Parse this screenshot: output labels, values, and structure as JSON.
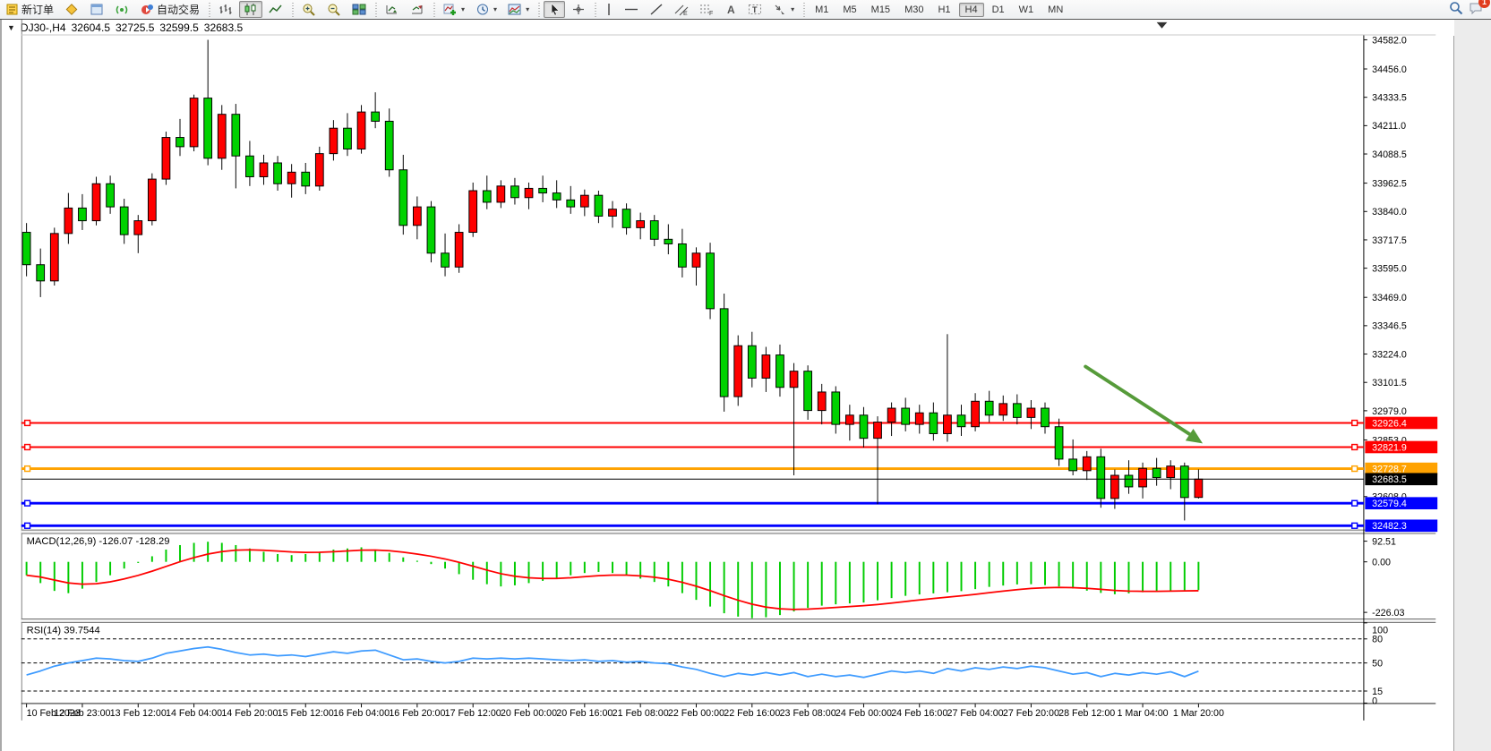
{
  "toolbar": {
    "groups": [
      {
        "items": [
          {
            "name": "new-order",
            "icon": "new-order",
            "label": "新订单"
          },
          {
            "name": "quotes",
            "icon": "diamond"
          },
          {
            "name": "market-watch",
            "icon": "window-blue"
          },
          {
            "name": "signals",
            "icon": "signal"
          },
          {
            "name": "auto-trading",
            "icon": "autotrade",
            "label": "自动交易"
          }
        ]
      },
      {
        "items": [
          {
            "name": "bars-chart",
            "icon": "bars"
          },
          {
            "name": "candles-chart",
            "icon": "candles",
            "active": true
          },
          {
            "name": "line-chart",
            "icon": "line"
          }
        ]
      },
      {
        "items": [
          {
            "name": "zoom-in",
            "icon": "zoom-in"
          },
          {
            "name": "zoom-out",
            "icon": "zoom-out"
          },
          {
            "name": "tile-windows",
            "icon": "tile"
          }
        ]
      },
      {
        "items": [
          {
            "name": "auto-scroll",
            "icon": "autoscroll"
          },
          {
            "name": "chart-shift",
            "icon": "chartshift"
          }
        ]
      },
      {
        "items": [
          {
            "name": "indicators",
            "icon": "indicator-add",
            "dropdown": true
          },
          {
            "name": "periods",
            "icon": "clock",
            "dropdown": true
          },
          {
            "name": "templates",
            "icon": "template",
            "dropdown": true
          }
        ]
      },
      {
        "items": [
          {
            "name": "cursor",
            "icon": "cursor",
            "active": true
          },
          {
            "name": "crosshair",
            "icon": "crosshair"
          }
        ]
      },
      {
        "items": [
          {
            "name": "vertical-line",
            "icon": "vline"
          },
          {
            "name": "horizontal-line",
            "icon": "hline"
          },
          {
            "name": "trendline",
            "icon": "trend"
          },
          {
            "name": "equidistant-channel",
            "icon": "channel"
          },
          {
            "name": "fibonacci",
            "icon": "fibo"
          },
          {
            "name": "text",
            "icon": "textA"
          },
          {
            "name": "text-label",
            "icon": "labelT"
          },
          {
            "name": "arrows",
            "icon": "shapes",
            "dropdown": true
          }
        ]
      },
      {
        "items": [
          {
            "name": "tf-m1",
            "label": "M1",
            "text_only": true
          },
          {
            "name": "tf-m5",
            "label": "M5",
            "text_only": true
          },
          {
            "name": "tf-m15",
            "label": "M15",
            "text_only": true
          },
          {
            "name": "tf-m30",
            "label": "M30",
            "text_only": true
          },
          {
            "name": "tf-h1",
            "label": "H1",
            "text_only": true
          },
          {
            "name": "tf-h4",
            "label": "H4",
            "text_only": true,
            "active": true
          },
          {
            "name": "tf-d1",
            "label": "D1",
            "text_only": true
          },
          {
            "name": "tf-w1",
            "label": "W1",
            "text_only": true
          },
          {
            "name": "tf-mn",
            "label": "MN",
            "text_only": true
          }
        ]
      }
    ],
    "right": {
      "search_name": "search",
      "chat_name": "chat",
      "chat_badge": "1"
    }
  },
  "window": {
    "collapse_glyph": "▼",
    "symbol": "DJ30-,H4",
    "open": "32604.5",
    "high": "32725.5",
    "low": "32599.5",
    "close": "32683.5"
  },
  "colors": {
    "bull": "#ff0000",
    "bear": "#00d200",
    "outline": "#000000",
    "red_line": "#ff0000",
    "orange_line": "#ffa200",
    "blue_line": "#0000ff",
    "current_line": "#000000",
    "macd_hist": "#00cc00",
    "macd_signal": "#ff0000",
    "rsi_line": "#3e9bff",
    "arrow": "#569b3a"
  },
  "chart": {
    "price_axis_ticks": [
      "34582.0",
      "34456.0",
      "34333.5",
      "34211.0",
      "34088.5",
      "33962.5",
      "33840.0",
      "33717.5",
      "33595.0",
      "33469.0",
      "33346.5",
      "33224.0",
      "33101.5",
      "32979.0",
      "32853.0",
      "32608.0"
    ],
    "hlines": [
      {
        "name": "resistance-1",
        "price": 32926.4,
        "tag": "32926.4",
        "color": "#ff0000",
        "width": 2,
        "tag_text": "#ffffff"
      },
      {
        "name": "resistance-2",
        "price": 32821.9,
        "tag": "32821.9",
        "color": "#ff0000",
        "width": 2,
        "tag_text": "#ffffff"
      },
      {
        "name": "support-orange",
        "price": 32728.7,
        "tag": "32728.7",
        "color": "#ffa200",
        "width": 3,
        "tag_text": "#ffffff"
      },
      {
        "name": "support-blue-1",
        "price": 32579.4,
        "tag": "32579.4",
        "color": "#0000ff",
        "width": 3,
        "tag_text": "#ffffff"
      },
      {
        "name": "support-blue-2",
        "price": 32482.3,
        "tag": "32482.3",
        "color": "#0000ff",
        "width": 3,
        "tag_text": "#ffffff"
      }
    ],
    "current_price": {
      "value": 32683.5,
      "tag": "32683.5",
      "tag_bg": "#000000",
      "tag_text": "#ffffff"
    },
    "arrow_annotation": {
      "from_bar": 75.9,
      "from_price": 33170,
      "to_bar": 84.3,
      "to_price": 32838
    },
    "candles": [
      [
        33750,
        33790,
        33560,
        33610
      ],
      [
        33610,
        33680,
        33470,
        33540
      ],
      [
        33540,
        33770,
        33520,
        33745
      ],
      [
        33745,
        33920,
        33700,
        33855
      ],
      [
        33855,
        33915,
        33760,
        33800
      ],
      [
        33800,
        33990,
        33780,
        33960
      ],
      [
        33960,
        33995,
        33830,
        33860
      ],
      [
        33860,
        33895,
        33700,
        33740
      ],
      [
        33740,
        33825,
        33660,
        33800
      ],
      [
        33800,
        34005,
        33780,
        33980
      ],
      [
        33980,
        34185,
        33955,
        34160
      ],
      [
        34160,
        34240,
        34080,
        34120
      ],
      [
        34120,
        34345,
        34100,
        34330
      ],
      [
        34330,
        34582,
        34040,
        34070
      ],
      [
        34070,
        34300,
        34020,
        34260
      ],
      [
        34260,
        34305,
        33940,
        34080
      ],
      [
        34080,
        34145,
        33950,
        33990
      ],
      [
        33990,
        34085,
        33955,
        34050
      ],
      [
        34050,
        34080,
        33930,
        33960
      ],
      [
        33960,
        34045,
        33900,
        34010
      ],
      [
        34010,
        34050,
        33915,
        33950
      ],
      [
        33950,
        34120,
        33930,
        34090
      ],
      [
        34090,
        34235,
        34060,
        34200
      ],
      [
        34200,
        34265,
        34080,
        34110
      ],
      [
        34110,
        34300,
        34090,
        34270
      ],
      [
        34270,
        34355,
        34200,
        34230
      ],
      [
        34230,
        34285,
        33990,
        34020
      ],
      [
        34020,
        34085,
        33740,
        33780
      ],
      [
        33780,
        33905,
        33720,
        33860
      ],
      [
        33860,
        33885,
        33620,
        33660
      ],
      [
        33660,
        33745,
        33560,
        33600
      ],
      [
        33600,
        33785,
        33575,
        33750
      ],
      [
        33750,
        33965,
        33730,
        33930
      ],
      [
        33930,
        33995,
        33850,
        33880
      ],
      [
        33880,
        33975,
        33855,
        33950
      ],
      [
        33950,
        33985,
        33870,
        33900
      ],
      [
        33900,
        33965,
        33850,
        33940
      ],
      [
        33940,
        33995,
        33880,
        33920
      ],
      [
        33920,
        33975,
        33855,
        33890
      ],
      [
        33890,
        33950,
        33830,
        33860
      ],
      [
        33860,
        33935,
        33820,
        33910
      ],
      [
        33910,
        33930,
        33790,
        33820
      ],
      [
        33820,
        33885,
        33770,
        33850
      ],
      [
        33850,
        33875,
        33740,
        33770
      ],
      [
        33770,
        33835,
        33720,
        33800
      ],
      [
        33800,
        33825,
        33690,
        33720
      ],
      [
        33720,
        33785,
        33655,
        33700
      ],
      [
        33700,
        33765,
        33555,
        33600
      ],
      [
        33600,
        33685,
        33520,
        33660
      ],
      [
        33660,
        33705,
        33375,
        33420
      ],
      [
        33420,
        33485,
        32975,
        33040
      ],
      [
        33040,
        33305,
        33000,
        33260
      ],
      [
        33260,
        33320,
        33080,
        33120
      ],
      [
        33120,
        33255,
        33060,
        33220
      ],
      [
        33220,
        33265,
        33040,
        33080
      ],
      [
        33080,
        33185,
        32700,
        33150
      ],
      [
        33150,
        33175,
        32940,
        32980
      ],
      [
        32980,
        33095,
        32920,
        33060
      ],
      [
        33060,
        33085,
        32880,
        32920
      ],
      [
        32920,
        33005,
        32850,
        32960
      ],
      [
        32960,
        32995,
        32820,
        32860
      ],
      [
        32860,
        32955,
        32575,
        32930
      ],
      [
        32930,
        33015,
        32870,
        32990
      ],
      [
        32990,
        33035,
        32890,
        32920
      ],
      [
        32920,
        33005,
        32880,
        32970
      ],
      [
        32970,
        33015,
        32850,
        32880
      ],
      [
        32880,
        33310,
        32845,
        32960
      ],
      [
        32960,
        33005,
        32870,
        32910
      ],
      [
        32910,
        33055,
        32890,
        33020
      ],
      [
        33020,
        33065,
        32930,
        32960
      ],
      [
        32960,
        33045,
        32935,
        33010
      ],
      [
        33010,
        33050,
        32920,
        32950
      ],
      [
        32950,
        33025,
        32900,
        32990
      ],
      [
        32990,
        33015,
        32880,
        32910
      ],
      [
        32910,
        32945,
        32740,
        32770
      ],
      [
        32770,
        32855,
        32700,
        32720
      ],
      [
        32720,
        32805,
        32680,
        32780
      ],
      [
        32780,
        32815,
        32560,
        32600
      ],
      [
        32600,
        32725,
        32555,
        32700
      ],
      [
        32700,
        32765,
        32620,
        32650
      ],
      [
        32650,
        32755,
        32600,
        32730
      ],
      [
        32730,
        32775,
        32655,
        32690
      ],
      [
        32690,
        32765,
        32640,
        32740
      ],
      [
        32740,
        32755,
        32505,
        32604
      ],
      [
        32604.5,
        32725.5,
        32599.5,
        32683.5
      ]
    ]
  },
  "macd": {
    "label": "MACD(12,26,9) -126.07 -128.29",
    "axis_ticks": [
      {
        "v": 92.51,
        "t": "92.51"
      },
      {
        "v": 0,
        "t": "0.00"
      },
      {
        "v": -226.03,
        "t": "-226.03"
      }
    ],
    "histogram": [
      -60,
      -95,
      -130,
      -140,
      -120,
      -90,
      -60,
      -30,
      -5,
      25,
      55,
      75,
      85,
      90,
      85,
      75,
      60,
      45,
      35,
      30,
      35,
      45,
      55,
      60,
      65,
      55,
      40,
      20,
      5,
      -10,
      -30,
      -55,
      -80,
      -100,
      -110,
      -105,
      -95,
      -85,
      -75,
      -60,
      -50,
      -45,
      -50,
      -60,
      -75,
      -90,
      -110,
      -140,
      -170,
      -200,
      -230,
      -245,
      -252,
      -248,
      -238,
      -222,
      -206,
      -196,
      -190,
      -186,
      -182,
      -172,
      -162,
      -152,
      -146,
      -141,
      -136,
      -131,
      -122,
      -112,
      -106,
      -101,
      -100,
      -104,
      -110,
      -119,
      -129,
      -139,
      -145,
      -141,
      -136,
      -131,
      -128,
      -127,
      -126.07
    ]
  },
  "rsi": {
    "label": "RSI(14) 39.7544",
    "axis_ticks": [
      {
        "v": 100,
        "t": "100"
      },
      {
        "v": 80,
        "t": "80"
      },
      {
        "v": 50,
        "t": "50"
      },
      {
        "v": 15,
        "t": "15"
      },
      {
        "v": 0,
        "t": "0"
      }
    ],
    "dashed_levels": [
      80,
      50,
      15
    ],
    "values": [
      35,
      40,
      46,
      50,
      53,
      56,
      55,
      53,
      52,
      56,
      62,
      65,
      68,
      70,
      67,
      63,
      60,
      61,
      59,
      60,
      58,
      61,
      64,
      62,
      65,
      66,
      60,
      54,
      55,
      52,
      50,
      52,
      56,
      55,
      56,
      55,
      56,
      55,
      54,
      53,
      54,
      52,
      53,
      51,
      52,
      50,
      49,
      45,
      42,
      37,
      33,
      37,
      35,
      38,
      35,
      38,
      33,
      36,
      33,
      35,
      32,
      36,
      40,
      38,
      40,
      37,
      43,
      40,
      44,
      42,
      45,
      43,
      46,
      44,
      40,
      36,
      38,
      33,
      37,
      35,
      38,
      36,
      39,
      33,
      39.75
    ]
  },
  "time_axis": {
    "labels": [
      "10 Feb 2023",
      "12 Feb 23:00",
      "13 Feb 12:00",
      "14 Feb 04:00",
      "14 Feb 20:00",
      "15 Feb 12:00",
      "16 Feb 04:00",
      "16 Feb 20:00",
      "17 Feb 12:00",
      "20 Feb 00:00",
      "20 Feb 16:00",
      "21 Feb 08:00",
      "22 Feb 00:00",
      "22 Feb 16:00",
      "23 Feb 08:00",
      "24 Feb 00:00",
      "24 Feb 16:00",
      "27 Feb 04:00",
      "27 Feb 20:00",
      "28 Feb 12:00",
      "1 Mar 04:00",
      "1 Mar 20:00"
    ]
  }
}
